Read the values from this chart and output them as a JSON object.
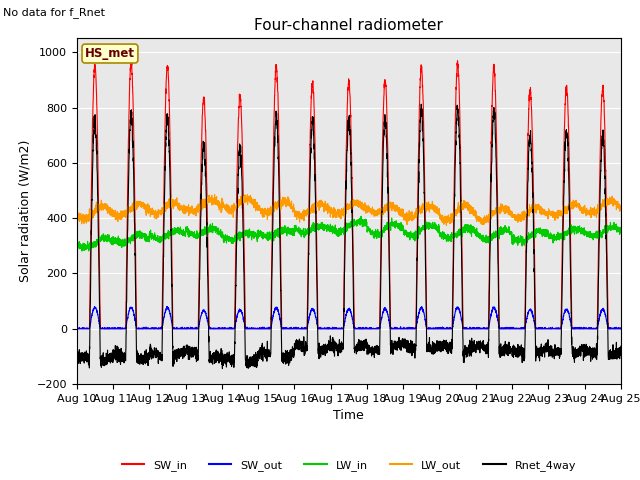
{
  "title": "Four-channel radiometer",
  "top_left_text": "No data for f_Rnet",
  "station_label": "HS_met",
  "ylabel": "Solar radiation (W/m2)",
  "xlabel": "Time",
  "ylim": [
    -200,
    1050
  ],
  "yticks": [
    -200,
    0,
    200,
    400,
    600,
    800,
    1000
  ],
  "x_tick_labels": [
    "Aug 10",
    "Aug 11",
    "Aug 12",
    "Aug 13",
    "Aug 14",
    "Aug 15",
    "Aug 16",
    "Aug 17",
    "Aug 18",
    "Aug 19",
    "Aug 20",
    "Aug 21",
    "Aug 22",
    "Aug 23",
    "Aug 24",
    "Aug 25"
  ],
  "colors": {
    "SW_in": "#ff0000",
    "SW_out": "#0000ff",
    "LW_in": "#00cc00",
    "LW_out": "#ff9900",
    "Rnet_4way": "#000000"
  },
  "background_color": "#e8e8e8",
  "n_days": 15,
  "points_per_day": 288,
  "sw_in_peaks": [
    950,
    960,
    950,
    830,
    840,
    950,
    890,
    895,
    900,
    940,
    960,
    940,
    860,
    875,
    870
  ]
}
